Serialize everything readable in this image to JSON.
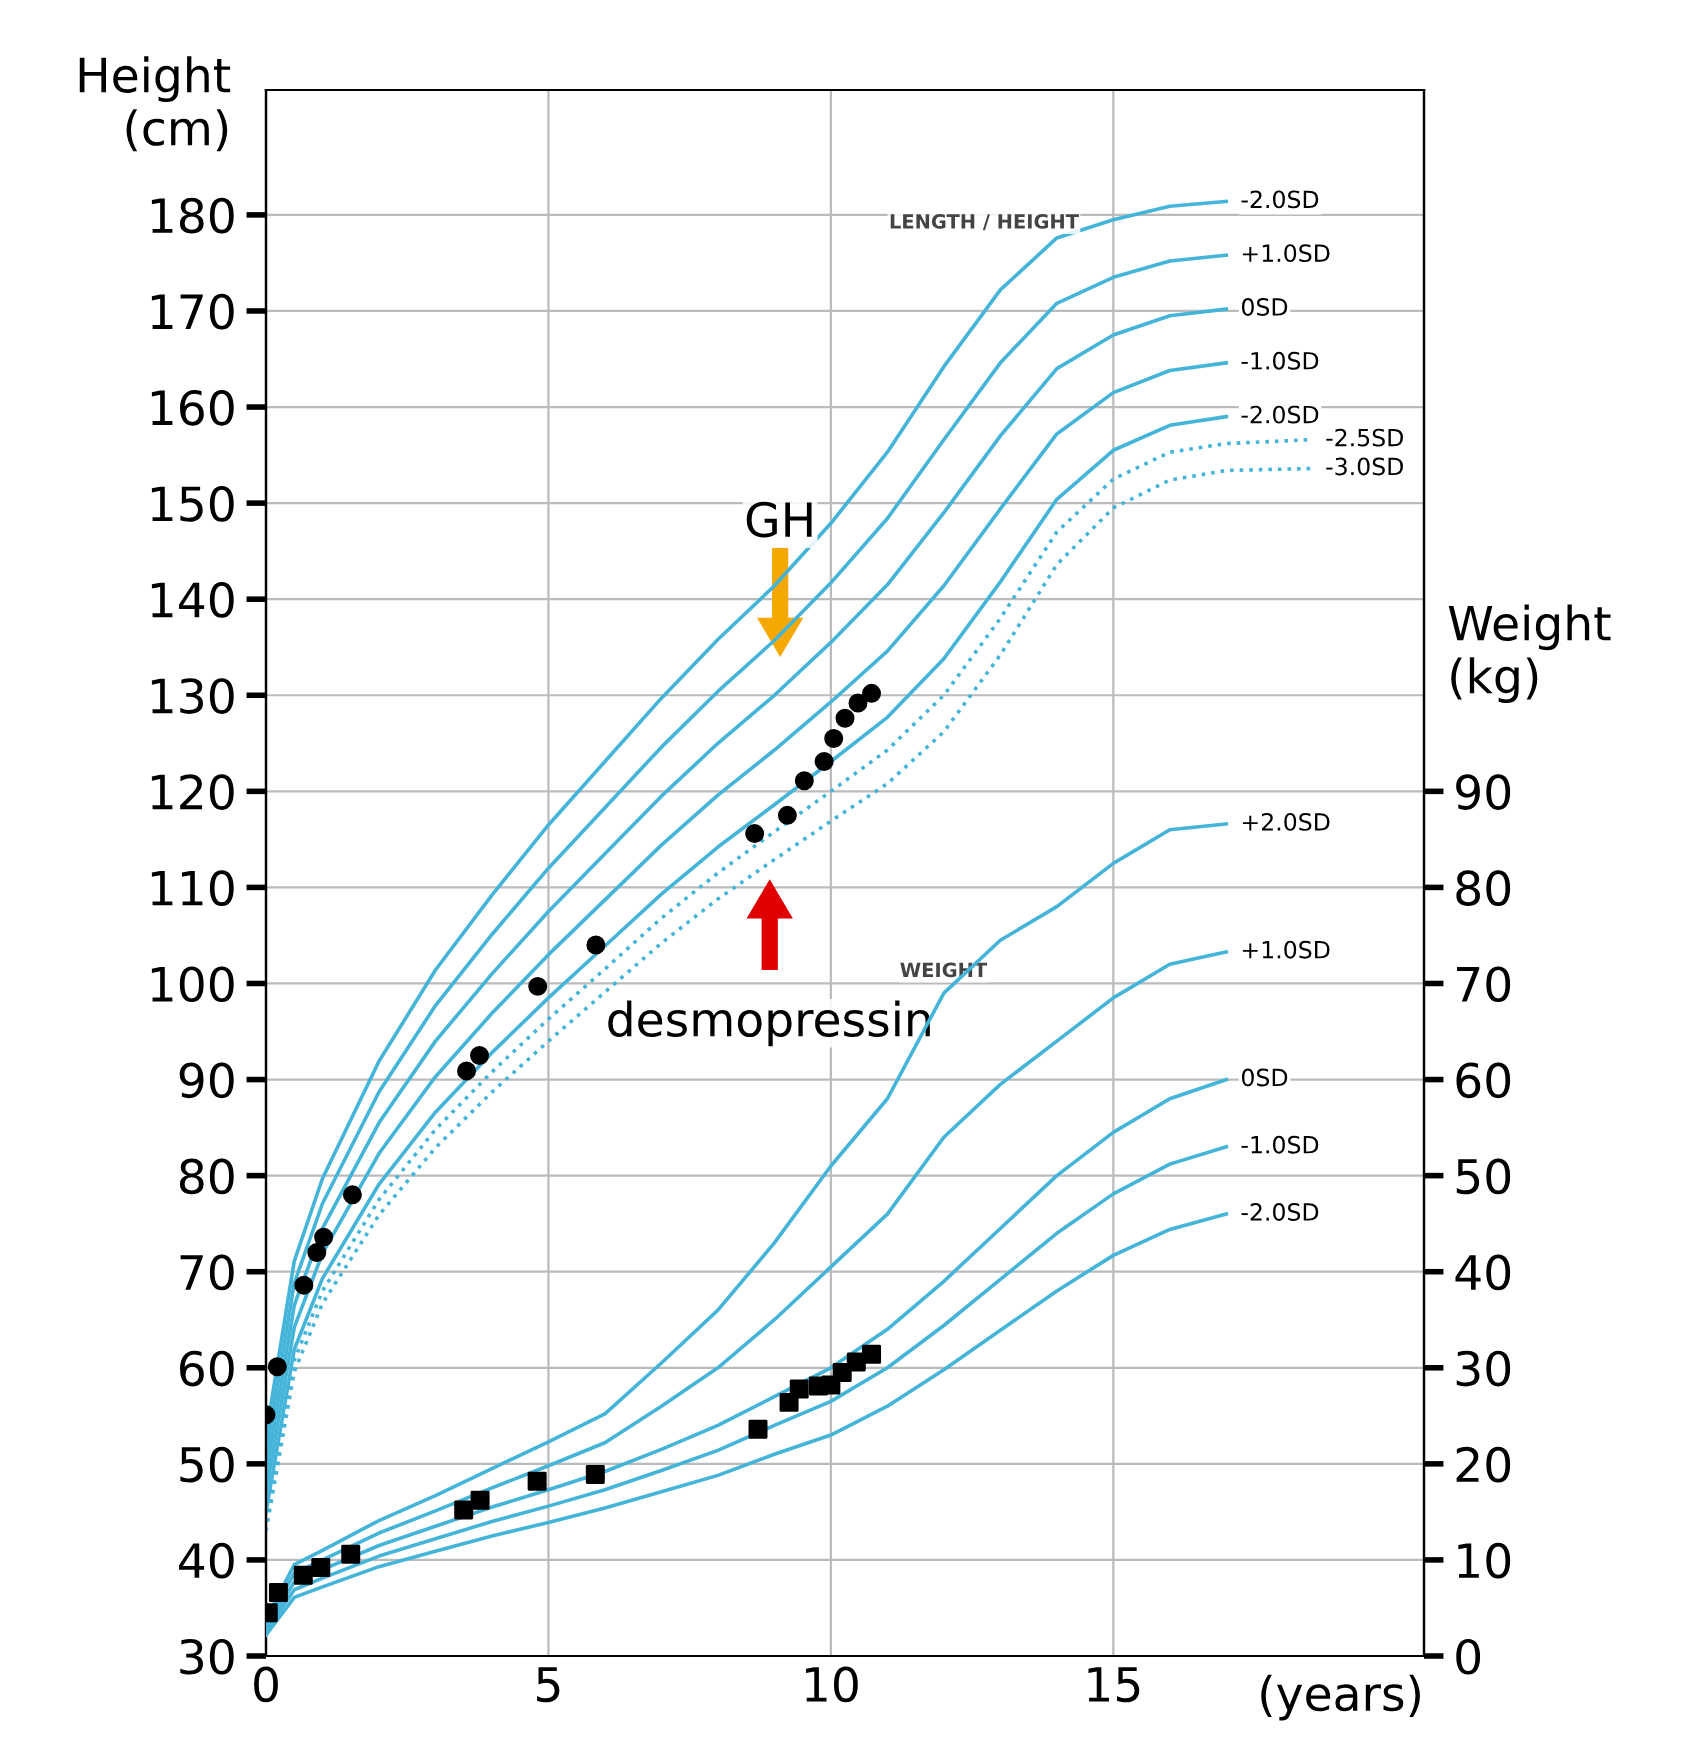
{
  "chart_data": {
    "type": "line",
    "xlabel": "(years)",
    "ylabel": "Height\n(cm)",
    "y2label": "Weight\n(kg)",
    "x": [
      0,
      0.5,
      1,
      2,
      3,
      4,
      5,
      6,
      7,
      8,
      9,
      10,
      11,
      12,
      13,
      14,
      15,
      16,
      17
    ],
    "xlim": [
      0,
      20.5
    ],
    "xticks": [
      0,
      5,
      10,
      15
    ],
    "ylim": [
      30,
      193
    ],
    "yticks": [
      30,
      40,
      50,
      60,
      70,
      80,
      90,
      100,
      110,
      120,
      130,
      140,
      150,
      160,
      170,
      180
    ],
    "y2lim": [
      0,
      163
    ],
    "y2ticks": [
      0,
      10,
      20,
      30,
      40,
      50,
      60,
      70,
      80,
      90
    ],
    "grid": true,
    "legend": false,
    "annotations": [
      "LENGTH / HEIGHT",
      "WEIGHT",
      "GH",
      "desmopressin"
    ],
    "series": [
      {
        "name": "-2.0SD",
        "color": "#45b4d9",
        "line_style": "solid",
        "values": [
          53,
          71.1,
          79.7,
          91.9,
          101.4,
          109.2,
          116.5,
          123.1,
          129.7,
          135.8,
          141.4,
          147.9,
          155.3,
          164.2,
          172.2,
          177.6,
          179.5,
          180.9,
          181.4
        ]
      },
      {
        "name": "+1.0SD",
        "color": "#45b4d9",
        "line_style": "solid",
        "values": [
          51,
          68.8,
          77.1,
          88.7,
          97.7,
          105.1,
          112,
          118.3,
          124.6,
          130.4,
          135.7,
          141.7,
          148.4,
          156.6,
          164.6,
          170.8,
          173.5,
          175.2,
          175.8
        ]
      },
      {
        "name": "0SD",
        "color": "#45b4d9",
        "line_style": "solid",
        "values": [
          49,
          66.5,
          74.5,
          85.5,
          94,
          101,
          107.5,
          113.5,
          119.5,
          125,
          130,
          135.5,
          141.5,
          149,
          157,
          164,
          167.5,
          169.5,
          170.2
        ]
      },
      {
        "name": "-1.0SD",
        "color": "#45b4d9",
        "line_style": "solid",
        "values": [
          47,
          64.2,
          71.9,
          82.3,
          90.3,
          96.9,
          103,
          108.7,
          114.4,
          119.6,
          124.3,
          129.3,
          134.6,
          141.4,
          149.4,
          157.2,
          161.5,
          163.8,
          164.6
        ]
      },
      {
        "name": "-2.0SD",
        "color": "#45b4d9",
        "line_style": "solid",
        "values": [
          45,
          61.9,
          69.3,
          79.1,
          86.6,
          92.8,
          98.5,
          103.9,
          109.3,
          114.2,
          118.6,
          123.1,
          127.7,
          133.8,
          141.8,
          150.4,
          155.5,
          158.1,
          159
        ]
      },
      {
        "name": "-2.5SD",
        "color": "#45b4d9",
        "line_style": "dotted",
        "x": [
          0,
          0.5,
          1,
          2,
          3,
          4,
          5,
          6,
          7,
          8,
          9,
          10,
          11,
          12,
          13,
          14,
          15,
          16,
          17,
          18.5
        ],
        "values": [
          44,
          60.8,
          68,
          77.5,
          84.8,
          90.8,
          96.3,
          101.5,
          106.8,
          111.5,
          115.8,
          120,
          124.3,
          130,
          138,
          147,
          152.5,
          155.3,
          156.2,
          156.6
        ]
      },
      {
        "name": "-3.0SD",
        "color": "#45b4d9",
        "line_style": "dotted",
        "x": [
          0,
          0.5,
          1,
          2,
          3,
          4,
          5,
          6,
          7,
          8,
          9,
          10,
          11,
          12,
          13,
          14,
          15,
          16,
          17,
          18.5
        ],
        "values": [
          43,
          59.6,
          66.7,
          75.9,
          82.9,
          88.7,
          94,
          99.1,
          104.2,
          108.8,
          112.9,
          116.9,
          120.8,
          126.2,
          134.2,
          143.6,
          149.5,
          152.4,
          153.4,
          153.6
        ]
      },
      {
        "name": "+2.0SD",
        "color": "#45b4d9",
        "line_style": "solid",
        "axis": "y2",
        "values": [
          3.8,
          9.5,
          11,
          14.1,
          16.7,
          19.5,
          22.3,
          25.2,
          30.5,
          36,
          43,
          51,
          58,
          69,
          74.5,
          78,
          82.5,
          86,
          86.6
        ]
      },
      {
        "name": "+1.0SD",
        "color": "#45b4d9",
        "line_style": "solid",
        "axis": "y2",
        "values": [
          3.4,
          8.6,
          10,
          12.8,
          15.1,
          17.5,
          19.8,
          22.2,
          26,
          30,
          35,
          40.5,
          46,
          54,
          59.5,
          64,
          68.5,
          72,
          73.3
        ]
      },
      {
        "name": "0SD",
        "color": "#45b4d9",
        "line_style": "solid",
        "axis": "y2",
        "values": [
          3,
          7.7,
          9,
          11.5,
          13.5,
          15.5,
          17.3,
          19.2,
          21.5,
          24,
          27,
          30,
          34,
          39,
          44.5,
          50,
          54.5,
          58,
          60
        ]
      },
      {
        "name": "-1.0SD",
        "color": "#45b4d9",
        "line_style": "solid",
        "axis": "y2",
        "values": [
          2.6,
          6.9,
          8.1,
          10.4,
          12.2,
          14,
          15.6,
          17.3,
          19.3,
          21.4,
          24,
          26.5,
          30,
          34.4,
          39.2,
          44,
          48.1,
          51.2,
          53
        ]
      },
      {
        "name": "-2.0SD",
        "color": "#45b4d9",
        "line_style": "solid",
        "axis": "y2",
        "values": [
          2.2,
          6.1,
          7.2,
          9.3,
          10.9,
          12.5,
          13.9,
          15.4,
          17.1,
          18.8,
          21,
          23,
          26,
          29.8,
          33.9,
          38,
          41.7,
          44.4,
          46
        ]
      },
      {
        "type": "scatter",
        "color": "#000000",
        "marker": "circle",
        "x": [
          0,
          0.2,
          0.67,
          0.9,
          1.02,
          1.53,
          3.55,
          3.78,
          4.81,
          5.84,
          8.65,
          9.23,
          9.53,
          9.88,
          10.05,
          10.25,
          10.48,
          10.72
        ],
        "values": [
          55.1,
          60.1,
          68.6,
          72.0,
          73.6,
          78.0,
          90.9,
          92.5,
          99.7,
          104.0,
          115.6,
          117.5,
          121.1,
          123.1,
          125.5,
          127.6,
          129.2,
          130.2
        ]
      },
      {
        "type": "scatter",
        "color": "#000000",
        "marker": "square",
        "axis": "y2",
        "x": [
          0.04,
          0.22,
          0.66,
          0.97,
          1.5,
          3.5,
          3.79,
          4.8,
          5.83,
          8.71,
          9.26,
          9.44,
          9.78,
          10.0,
          10.2,
          10.45,
          10.72
        ],
        "values": [
          4.5,
          6.6,
          8.4,
          9.2,
          10.6,
          15.2,
          16.2,
          18.2,
          18.9,
          23.6,
          26.4,
          27.8,
          28.1,
          28.2,
          29.5,
          30.6,
          31.4
        ]
      }
    ]
  }
}
